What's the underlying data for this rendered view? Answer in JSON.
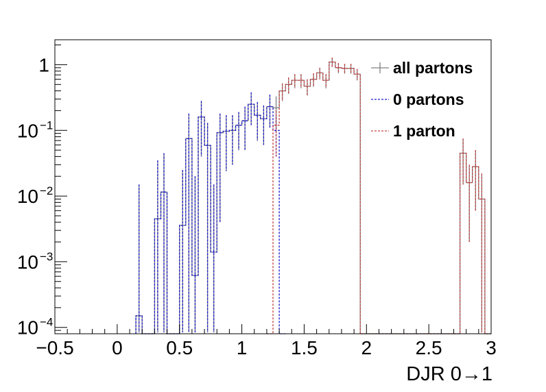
{
  "chart_data": {
    "type": "histogram-step",
    "xlabel": "DJR 0→1",
    "ylabel": "",
    "title": "",
    "xlim": [
      -0.5,
      3.0
    ],
    "ylim": [
      8e-05,
      2.4
    ],
    "log_y": true,
    "grid": false,
    "legend_position": "top-right",
    "x_ticks": [
      {
        "value": -0.5,
        "label": "−0.5"
      },
      {
        "value": 0,
        "label": "0"
      },
      {
        "value": 0.5,
        "label": "0.5"
      },
      {
        "value": 1,
        "label": "1"
      },
      {
        "value": 1.5,
        "label": "1.5"
      },
      {
        "value": 2,
        "label": "2"
      },
      {
        "value": 2.5,
        "label": "2.5"
      },
      {
        "value": 3,
        "label": "3"
      }
    ],
    "y_ticks": [
      {
        "value": 0.0001,
        "base": "10",
        "exp": "−4"
      },
      {
        "value": 0.001,
        "base": "10",
        "exp": "−3"
      },
      {
        "value": 0.01,
        "base": "10",
        "exp": "−2"
      },
      {
        "value": 0.1,
        "base": "10",
        "exp": "−1"
      },
      {
        "value": 1,
        "base": "1",
        "exp": ""
      }
    ],
    "floor": 8e-05,
    "series": [
      {
        "name": "all partons",
        "color": "#808080",
        "dash": "solid",
        "bins": [
          [
            0.15,
            0.2,
            0.00015,
            0.015
          ],
          [
            0.2,
            0.25,
            8e-05,
            0
          ],
          [
            0.25,
            0.3,
            8e-05,
            0
          ],
          [
            0.3,
            0.35,
            0.0045,
            0.035
          ],
          [
            0.35,
            0.4,
            0.0115,
            0.045
          ],
          [
            0.4,
            0.45,
            8e-05,
            0
          ],
          [
            0.45,
            0.5,
            8e-05,
            0
          ],
          [
            0.5,
            0.55,
            0.0036,
            0.025
          ],
          [
            0.55,
            0.6,
            0.075,
            0.18
          ],
          [
            0.6,
            0.65,
            0.00062,
            0.02
          ],
          [
            0.65,
            0.7,
            0.16,
            0.28
          ],
          [
            0.7,
            0.75,
            0.059,
            0.13
          ],
          [
            0.75,
            0.8,
            0.0014,
            0.015
          ],
          [
            0.8,
            0.85,
            0.092,
            0.18
          ],
          [
            0.85,
            0.9,
            0.097,
            0.17
          ],
          [
            0.9,
            0.95,
            0.1,
            0.17
          ],
          [
            0.95,
            1.0,
            0.12,
            0.19
          ],
          [
            1.0,
            1.05,
            0.14,
            0.23
          ],
          [
            1.05,
            1.1,
            0.25,
            0.38
          ],
          [
            1.1,
            1.15,
            0.17,
            0.27
          ],
          [
            1.15,
            1.2,
            0.15,
            0.24
          ],
          [
            1.2,
            1.25,
            0.23,
            0.35
          ],
          [
            1.25,
            1.3,
            0.22,
            0.33
          ],
          [
            1.3,
            1.35,
            0.4,
            0.52
          ],
          [
            1.35,
            1.4,
            0.5,
            0.64
          ],
          [
            1.4,
            1.45,
            0.58,
            0.72
          ],
          [
            1.45,
            1.5,
            0.58,
            0.72
          ],
          [
            1.5,
            1.55,
            0.47,
            0.6
          ],
          [
            1.55,
            1.6,
            0.6,
            0.74
          ],
          [
            1.6,
            1.65,
            0.75,
            0.9
          ],
          [
            1.65,
            1.7,
            0.58,
            0.72
          ],
          [
            1.7,
            1.75,
            1.1,
            1.28
          ],
          [
            1.75,
            1.8,
            0.9,
            1.06
          ],
          [
            1.8,
            1.85,
            0.88,
            1.03
          ],
          [
            1.85,
            1.9,
            0.88,
            1.03
          ],
          [
            1.9,
            1.95,
            0.72,
            0.86
          ],
          [
            1.95,
            2.0,
            8e-05,
            0
          ],
          [
            2.0,
            2.05,
            8e-05,
            0
          ],
          [
            2.05,
            2.1,
            8e-05,
            0
          ],
          [
            2.1,
            2.15,
            8e-05,
            0
          ],
          [
            2.15,
            2.2,
            8e-05,
            0
          ],
          [
            2.2,
            2.25,
            8e-05,
            0
          ],
          [
            2.25,
            2.3,
            8e-05,
            0
          ],
          [
            2.3,
            2.35,
            8e-05,
            0
          ],
          [
            2.35,
            2.4,
            8e-05,
            0
          ],
          [
            2.4,
            2.45,
            8e-05,
            0
          ],
          [
            2.45,
            2.5,
            8e-05,
            0
          ],
          [
            2.5,
            2.55,
            8e-05,
            0
          ],
          [
            2.55,
            2.6,
            8e-05,
            0
          ],
          [
            2.6,
            2.65,
            8e-05,
            0
          ],
          [
            2.65,
            2.7,
            8e-05,
            0
          ],
          [
            2.7,
            2.75,
            8e-05,
            0
          ],
          [
            2.75,
            2.8,
            0.045,
            0.075
          ],
          [
            2.8,
            2.85,
            0.016,
            0.03
          ],
          [
            2.85,
            2.9,
            0.028,
            0.05
          ],
          [
            2.9,
            2.95,
            0.009,
            0.022
          ],
          [
            2.95,
            3.0,
            8e-05,
            0
          ]
        ]
      },
      {
        "name": "0 partons",
        "color": "#1a1acc",
        "dash": "dashed",
        "bins": [
          [
            0.15,
            0.2,
            0.00015,
            0.015
          ],
          [
            0.2,
            0.25,
            8e-05,
            0
          ],
          [
            0.25,
            0.3,
            8e-05,
            0
          ],
          [
            0.3,
            0.35,
            0.0045,
            0.035
          ],
          [
            0.35,
            0.4,
            0.0115,
            0.045
          ],
          [
            0.4,
            0.45,
            8e-05,
            0
          ],
          [
            0.45,
            0.5,
            8e-05,
            0
          ],
          [
            0.5,
            0.55,
            0.0036,
            0.025
          ],
          [
            0.55,
            0.6,
            0.075,
            0.18
          ],
          [
            0.6,
            0.65,
            0.00062,
            0.02
          ],
          [
            0.65,
            0.7,
            0.16,
            0.28
          ],
          [
            0.7,
            0.75,
            0.059,
            0.13
          ],
          [
            0.75,
            0.8,
            0.0014,
            0.015
          ],
          [
            0.8,
            0.85,
            0.092,
            0.18
          ],
          [
            0.85,
            0.9,
            0.097,
            0.17
          ],
          [
            0.9,
            0.95,
            0.1,
            0.17
          ],
          [
            0.95,
            1.0,
            0.12,
            0.19
          ],
          [
            1.0,
            1.05,
            0.14,
            0.23
          ],
          [
            1.05,
            1.1,
            0.25,
            0.38
          ],
          [
            1.1,
            1.15,
            0.17,
            0.27
          ],
          [
            1.15,
            1.2,
            0.15,
            0.24
          ],
          [
            1.2,
            1.25,
            0.23,
            0.35
          ],
          [
            1.25,
            1.3,
            0.1,
            0.16
          ],
          [
            1.3,
            1.35,
            8e-05,
            0
          ]
        ]
      },
      {
        "name": "1 parton",
        "color": "#c44040",
        "dash": "dashed",
        "bins": [
          [
            1.2,
            1.25,
            8e-05,
            0
          ],
          [
            1.25,
            1.3,
            0.12,
            0.2
          ],
          [
            1.3,
            1.35,
            0.4,
            0.52
          ],
          [
            1.35,
            1.4,
            0.5,
            0.64
          ],
          [
            1.4,
            1.45,
            0.58,
            0.72
          ],
          [
            1.45,
            1.5,
            0.58,
            0.72
          ],
          [
            1.5,
            1.55,
            0.47,
            0.6
          ],
          [
            1.55,
            1.6,
            0.6,
            0.74
          ],
          [
            1.6,
            1.65,
            0.75,
            0.9
          ],
          [
            1.65,
            1.7,
            0.58,
            0.72
          ],
          [
            1.7,
            1.75,
            1.1,
            1.28
          ],
          [
            1.75,
            1.8,
            0.9,
            1.06
          ],
          [
            1.8,
            1.85,
            0.88,
            1.03
          ],
          [
            1.85,
            1.9,
            0.88,
            1.03
          ],
          [
            1.9,
            1.95,
            0.72,
            0.86
          ],
          [
            1.95,
            2.0,
            8e-05,
            0
          ],
          [
            2.0,
            2.05,
            8e-05,
            0
          ],
          [
            2.05,
            2.1,
            8e-05,
            0
          ],
          [
            2.1,
            2.15,
            8e-05,
            0
          ],
          [
            2.15,
            2.2,
            8e-05,
            0
          ],
          [
            2.2,
            2.25,
            8e-05,
            0
          ],
          [
            2.25,
            2.3,
            8e-05,
            0
          ],
          [
            2.3,
            2.35,
            8e-05,
            0
          ],
          [
            2.35,
            2.4,
            8e-05,
            0
          ],
          [
            2.4,
            2.45,
            8e-05,
            0
          ],
          [
            2.45,
            2.5,
            8e-05,
            0
          ],
          [
            2.5,
            2.55,
            8e-05,
            0
          ],
          [
            2.55,
            2.6,
            8e-05,
            0
          ],
          [
            2.6,
            2.65,
            8e-05,
            0
          ],
          [
            2.65,
            2.7,
            8e-05,
            0
          ],
          [
            2.7,
            2.75,
            8e-05,
            0
          ],
          [
            2.75,
            2.8,
            0.045,
            0.075
          ],
          [
            2.8,
            2.85,
            0.016,
            0.03
          ],
          [
            2.85,
            2.9,
            0.028,
            0.05
          ],
          [
            2.9,
            2.95,
            0.009,
            0.022
          ],
          [
            2.95,
            3.0,
            8e-05,
            0
          ]
        ]
      }
    ]
  }
}
